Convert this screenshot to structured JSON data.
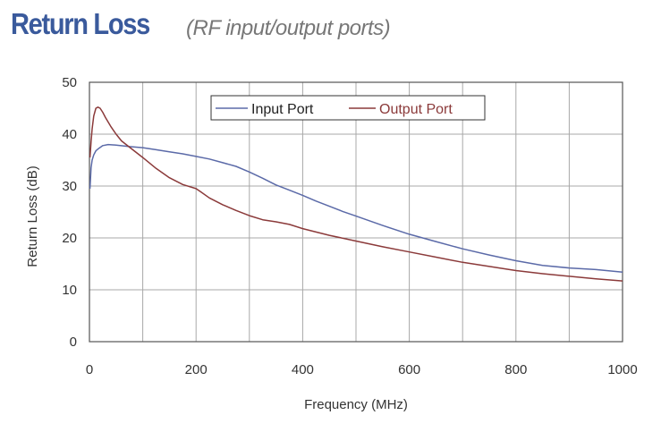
{
  "header": {
    "title": "Return Loss",
    "subtitle": "(RF input/output ports)"
  },
  "chart_data": {
    "type": "line",
    "title": "Return Loss",
    "subtitle": "(RF input/output ports)",
    "xlabel": "Frequency (MHz)",
    "ylabel": "Return Loss (dB)",
    "xlim": [
      0,
      1000
    ],
    "ylim": [
      0,
      50
    ],
    "xticks": [
      0,
      200,
      400,
      600,
      800,
      1000
    ],
    "yticks": [
      0,
      10,
      20,
      30,
      40,
      50
    ],
    "x_gridlines": [
      0,
      100,
      200,
      300,
      400,
      500,
      600,
      700,
      800,
      900,
      1000
    ],
    "y_gridlines": [
      0,
      10,
      20,
      30,
      40,
      50
    ],
    "grid": true,
    "legend_position": "top-center",
    "series": [
      {
        "name": "Input Port",
        "color": "#5b6aa8",
        "x": [
          1,
          3,
          5,
          8,
          12,
          18,
          25,
          35,
          50,
          75,
          100,
          125,
          150,
          175,
          200,
          225,
          250,
          275,
          300,
          325,
          350,
          375,
          400,
          425,
          450,
          475,
          500,
          550,
          600,
          650,
          700,
          750,
          800,
          850,
          900,
          950,
          1000
        ],
        "y": [
          29.5,
          33.5,
          35,
          36,
          36.8,
          37.3,
          37.8,
          38,
          37.9,
          37.6,
          37.4,
          37,
          36.6,
          36.2,
          35.7,
          35.2,
          34.5,
          33.8,
          32.7,
          31.5,
          30.2,
          29.2,
          28.2,
          27.1,
          26.1,
          25.1,
          24.2,
          22.4,
          20.7,
          19.3,
          17.9,
          16.7,
          15.6,
          14.7,
          14.2,
          13.9,
          13.4
        ]
      },
      {
        "name": "Output Port",
        "color": "#8b3a3a",
        "x": [
          1,
          3,
          5,
          8,
          12,
          16,
          20,
          25,
          30,
          40,
          50,
          60,
          75,
          100,
          125,
          150,
          175,
          200,
          210,
          225,
          250,
          275,
          300,
          325,
          350,
          375,
          400,
          450,
          500,
          550,
          600,
          650,
          700,
          750,
          800,
          850,
          900,
          950,
          1000
        ],
        "y": [
          35.5,
          38.5,
          41,
          43.5,
          45,
          45.2,
          45,
          44.2,
          43.2,
          41.5,
          40,
          38.7,
          37.5,
          35.5,
          33.4,
          31.6,
          30.3,
          29.5,
          28.8,
          27.7,
          26.4,
          25.3,
          24.3,
          23.5,
          23.1,
          22.6,
          21.8,
          20.5,
          19.4,
          18.3,
          17.3,
          16.3,
          15.3,
          14.5,
          13.7,
          13.1,
          12.6,
          12.1,
          11.7
        ]
      }
    ]
  }
}
